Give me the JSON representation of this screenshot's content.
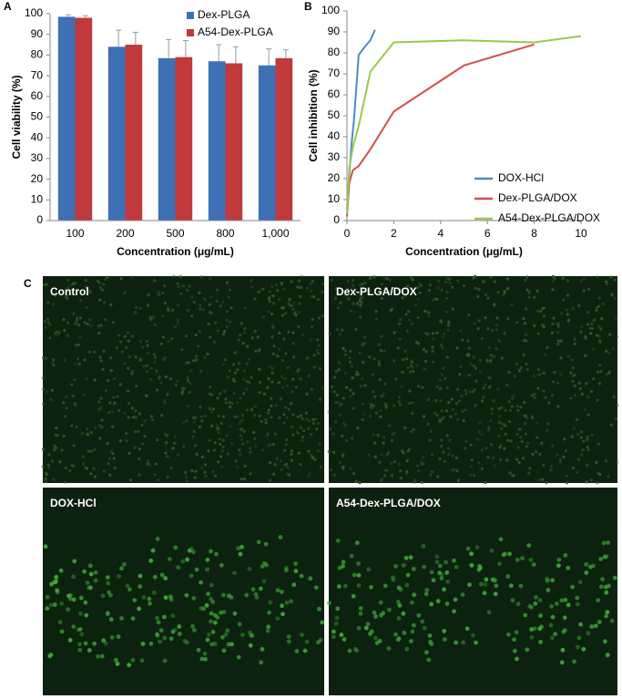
{
  "chart_data": [
    {
      "panel": "A",
      "type": "bar",
      "xlabel": "Concentration (μg/mL)",
      "ylabel": "Cell viability (%)",
      "categories": [
        "100",
        "200",
        "500",
        "800",
        "1,000"
      ],
      "series": [
        {
          "name": "Dex-PLGA",
          "color": "#3f70b6",
          "values": [
            98.5,
            84,
            78.5,
            77,
            75
          ],
          "errors": [
            1,
            8,
            9,
            8,
            8
          ]
        },
        {
          "name": "A54-Dex-PLGA",
          "color": "#c0393b",
          "values": [
            98,
            85,
            79,
            76,
            78.5
          ],
          "errors": [
            1,
            6,
            8,
            8,
            4
          ]
        }
      ],
      "ylim": [
        0,
        100
      ],
      "yticks": [
        0,
        10,
        20,
        30,
        40,
        50,
        60,
        70,
        80,
        90,
        100
      ],
      "legend": "top-right"
    },
    {
      "panel": "B",
      "type": "line",
      "xlabel": "Concentration (μg/mL)",
      "ylabel": "Cell inhibition (%)",
      "series": [
        {
          "name": "DOX-HCl",
          "color": "#4a8cc4",
          "x": [
            0,
            0.1,
            0.2,
            0.3,
            0.5,
            0.7,
            1.0,
            1.2
          ],
          "values": [
            5,
            22,
            37,
            48,
            79,
            82,
            86,
            91
          ]
        },
        {
          "name": "Dex-PLGA/DOX",
          "color": "#d0504e",
          "x": [
            0,
            0.1,
            0.25,
            0.5,
            1,
            2,
            5,
            8
          ],
          "values": [
            2,
            18,
            24,
            26,
            34,
            52,
            74,
            84
          ]
        },
        {
          "name": "A54-Dex-PLGA/DOX",
          "color": "#9bc84c",
          "x": [
            0,
            0.1,
            0.25,
            0.5,
            1,
            2,
            5,
            8,
            10
          ],
          "values": [
            3,
            25,
            35,
            45,
            71,
            85,
            86,
            85,
            88
          ]
        }
      ],
      "xlim": [
        0,
        10
      ],
      "xticks": [
        0,
        2,
        4,
        6,
        8,
        10
      ],
      "ylim": [
        0,
        100
      ],
      "yticks": [
        0,
        10,
        20,
        30,
        40,
        50,
        60,
        70,
        80,
        90,
        100
      ],
      "legend": "bottom-right"
    }
  ],
  "panel_c": {
    "label": "C",
    "images": [
      "Control",
      "Dex-PLGA/DOX",
      "DOX-HCl",
      "A54-Dex-PLGA/DOX"
    ]
  }
}
